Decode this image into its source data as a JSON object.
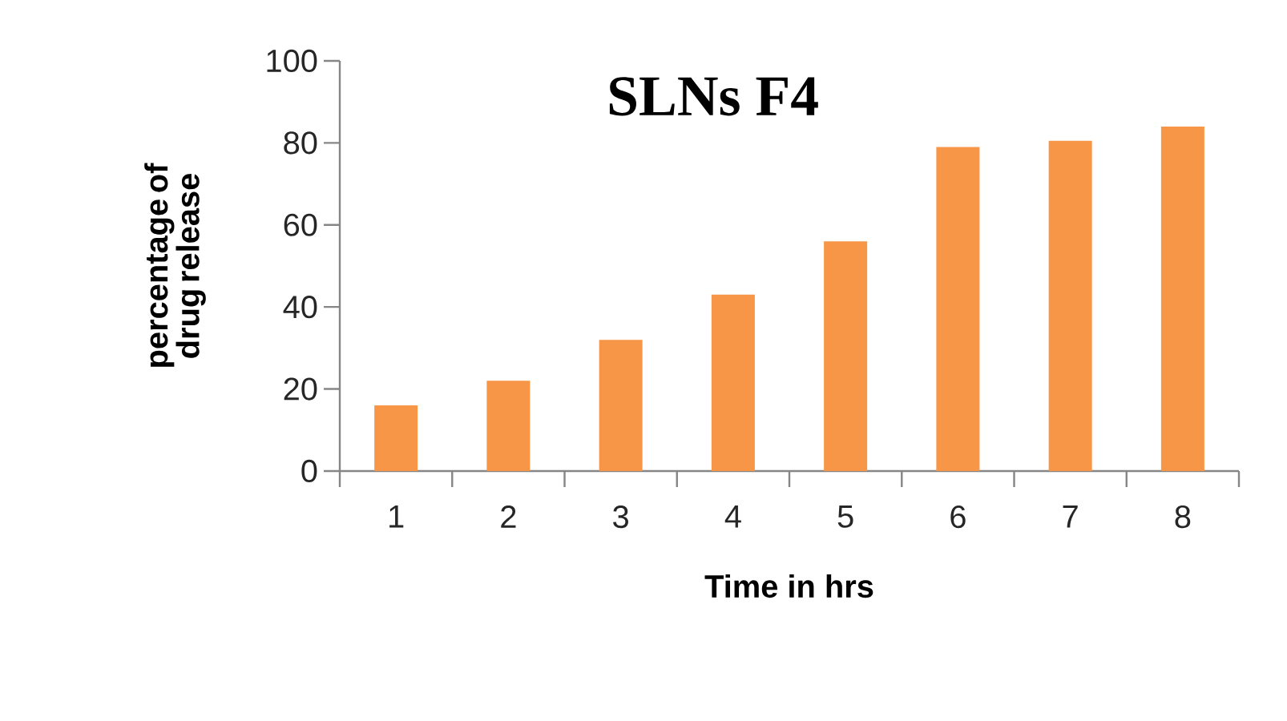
{
  "chart_data": {
    "type": "bar",
    "title": "SLNs F4",
    "xlabel": "Time in hrs",
    "ylabel": "percentage of drug release",
    "categories": [
      "1",
      "2",
      "3",
      "4",
      "5",
      "6",
      "7",
      "8"
    ],
    "values": [
      16,
      22,
      32,
      43,
      56,
      79,
      80.5,
      84
    ],
    "color": "#f79646",
    "ylim": [
      0,
      100
    ],
    "yticks": [
      0,
      20,
      40,
      60,
      80,
      100
    ],
    "grid": false
  }
}
